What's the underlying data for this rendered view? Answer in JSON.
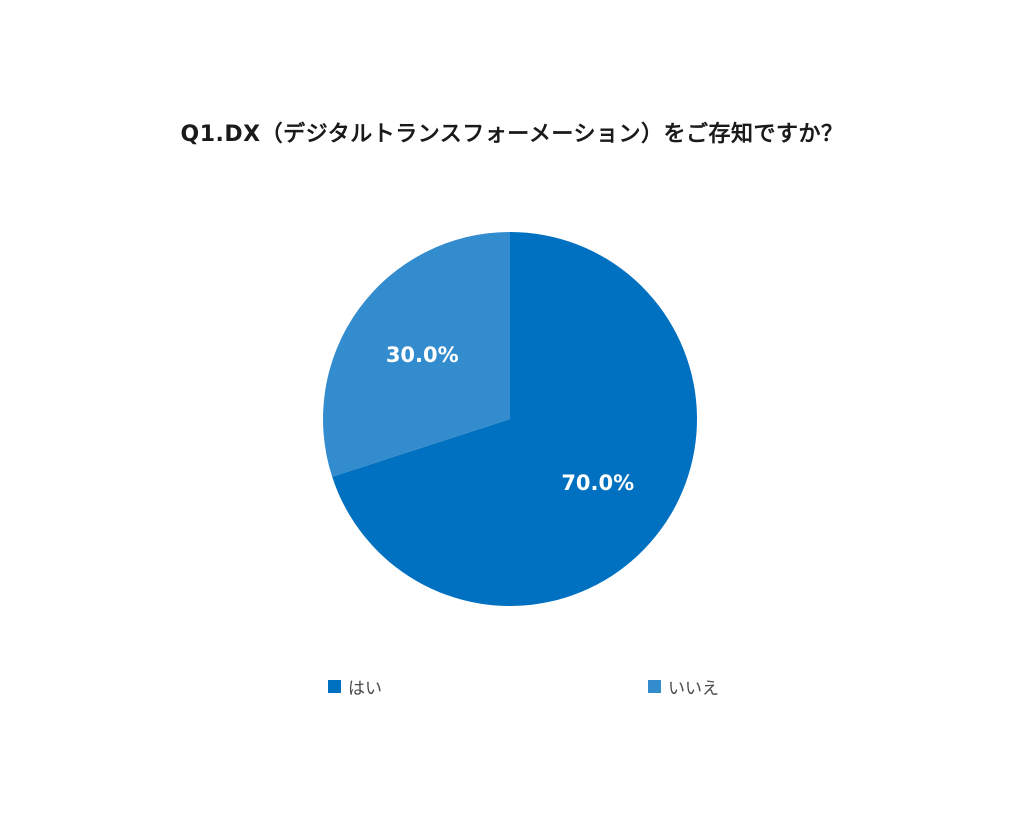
{
  "chart_data": {
    "type": "pie",
    "title": "Q1.DX（デジタルトランスフォーメーション）をご存知ですか？",
    "slices": [
      {
        "label": "はい",
        "value": 70.0,
        "display": "70.0%",
        "color": "#0070c0"
      },
      {
        "label": "いいえ",
        "value": 30.0,
        "display": "30.0%",
        "color": "#338ccd"
      }
    ],
    "legend_position": "bottom",
    "start": "12 o'clock, clockwise"
  }
}
